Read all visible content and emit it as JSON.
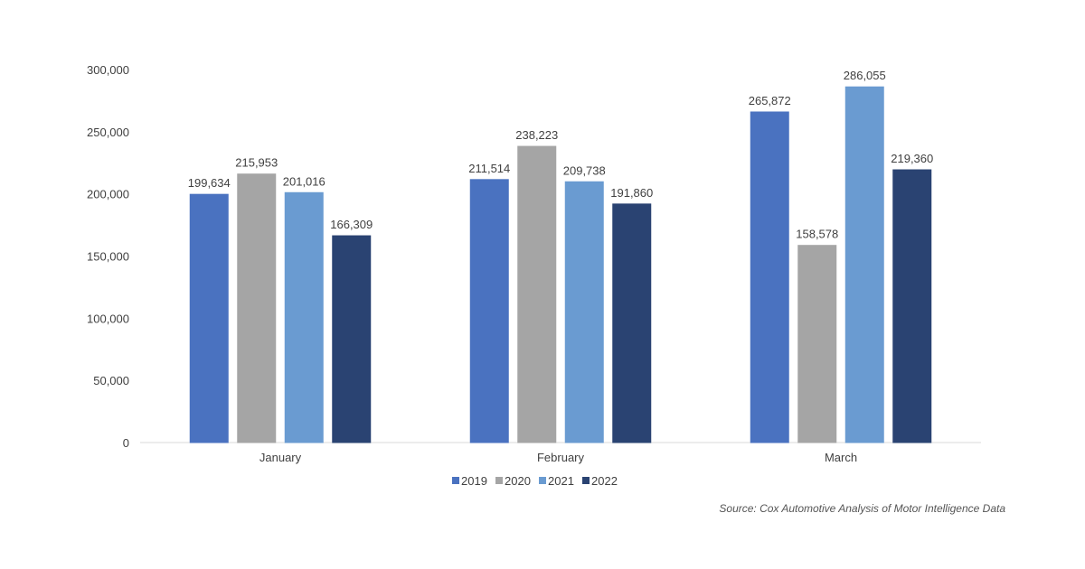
{
  "chart_data": {
    "type": "bar",
    "categories": [
      "January",
      "February",
      "March"
    ],
    "series": [
      {
        "name": "2019",
        "color": "#4A72C0",
        "values": [
          199634,
          211514,
          265872
        ]
      },
      {
        "name": "2020",
        "color": "#A5A5A5",
        "values": [
          215953,
          238223,
          158578
        ]
      },
      {
        "name": "2021",
        "color": "#6A9BD1",
        "values": [
          201016,
          209738,
          286055
        ]
      },
      {
        "name": "2022",
        "color": "#2A4372",
        "values": [
          166309,
          191860,
          219360
        ]
      }
    ],
    "ylim": [
      0,
      300000
    ],
    "yticks": [
      "0",
      "50,000",
      "100,000",
      "150,000",
      "200,000",
      "250,000",
      "300,000"
    ],
    "data_labels": true,
    "grid": false,
    "legend": "bottom",
    "source": "Source: Cox Automotive Analysis of Motor Intelligence Data"
  }
}
